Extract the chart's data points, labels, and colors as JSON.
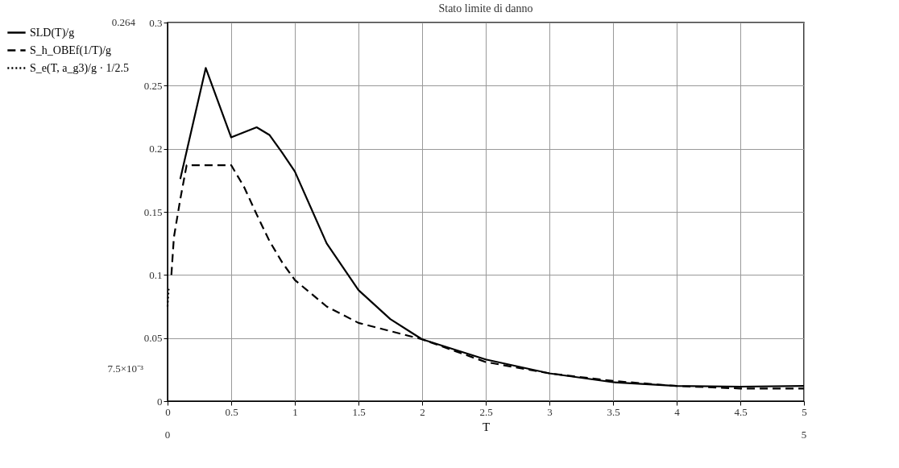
{
  "chart_data": {
    "type": "line",
    "title": "Stato limite di danno",
    "xlabel": "T",
    "xlim": [
      0,
      5
    ],
    "xticks": [
      0,
      0.5,
      1,
      1.5,
      2,
      2.5,
      3,
      3.5,
      4,
      4.5,
      5
    ],
    "ylim": [
      0,
      0.3
    ],
    "yticks": [
      0,
      0.05,
      0.1,
      0.15,
      0.2,
      0.25,
      0.3
    ],
    "grid": true,
    "legend": "left",
    "annotations": [
      "0.264",
      "7.5×10⁻³",
      "0",
      "5"
    ],
    "series": [
      {
        "name": "SLD(T)/g",
        "color": "#000000",
        "line_style": "solid",
        "x": [
          0.1,
          0.3,
          0.5,
          0.7,
          0.8,
          0.9,
          1.0,
          1.25,
          1.5,
          1.75,
          2,
          2.5,
          3,
          3.5,
          4,
          4.5,
          5
        ],
        "values": [
          0.176,
          0.264,
          0.209,
          0.217,
          0.211,
          0.197,
          0.182,
          0.125,
          0.088,
          0.065,
          0.049,
          0.033,
          0.022,
          0.015,
          0.012,
          0.0115,
          0.012
        ]
      },
      {
        "name": "S_h_OBEf(1/T)/g",
        "color": "#000000",
        "line_style": "dashed",
        "x": [
          0.03,
          0.05,
          0.1,
          0.15,
          0.5,
          0.6,
          0.7,
          0.8,
          0.9,
          1.0,
          1.25,
          1.5,
          2,
          2.5,
          3,
          3.5,
          4,
          4.5,
          5
        ],
        "values": [
          0.1,
          0.13,
          0.16,
          0.187,
          0.187,
          0.17,
          0.148,
          0.127,
          0.11,
          0.096,
          0.075,
          0.062,
          0.049,
          0.031,
          0.022,
          0.016,
          0.012,
          0.01,
          0.01
        ]
      },
      {
        "name": "S_e(T, a_g3)/g · 1/2.5",
        "color": "#000000",
        "line_style": "dotted",
        "x": [
          0,
          0.005,
          0.01
        ],
        "values": [
          0.075,
          0.083,
          0.09
        ]
      }
    ]
  }
}
